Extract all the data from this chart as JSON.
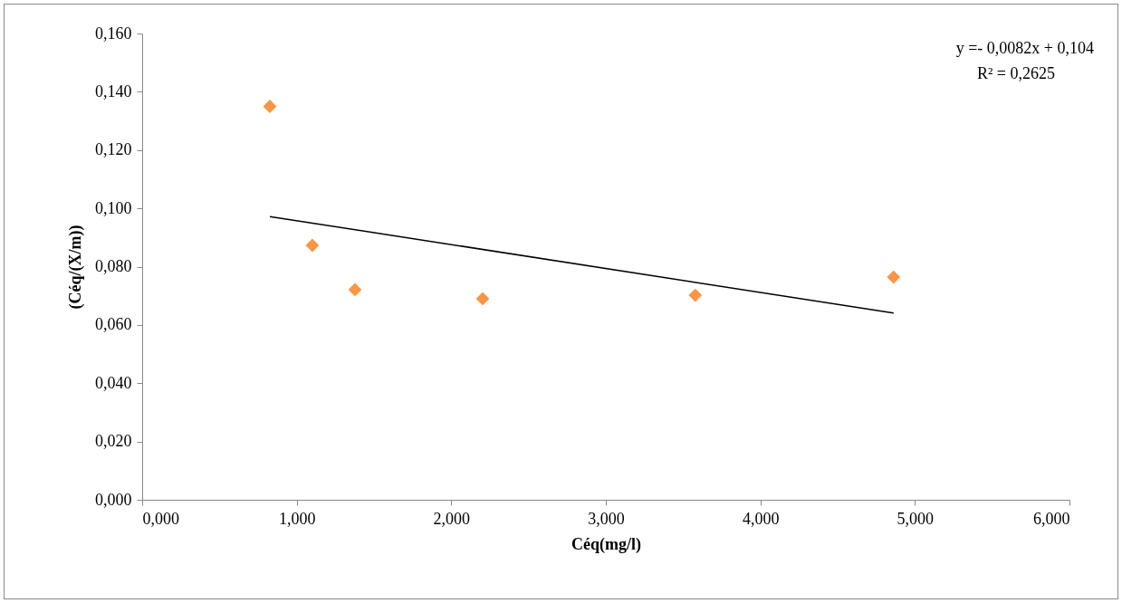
{
  "chart_data": {
    "type": "scatter",
    "xlabel": "Céq(mg/l)",
    "ylabel": "(Céq/(X/m))",
    "series": [
      {
        "marker": "diamond",
        "color": "#f79646",
        "x": [
          0.826,
          1.101,
          1.377,
          2.203,
          3.579,
          4.862
        ],
        "values": [
          0.135,
          0.0873,
          0.0721,
          0.069,
          0.0702,
          0.0764
        ]
      },
      {
        "type": "line",
        "color": "#000000",
        "x": [
          0.826,
          4.862
        ],
        "values": [
          0.0972,
          0.0641
        ]
      }
    ],
    "xlim": [
      0,
      6
    ],
    "xticks": [
      {
        "value": 0,
        "label": "0,000"
      },
      {
        "value": 1,
        "label": "1,000"
      },
      {
        "value": 2,
        "label": "2,000"
      },
      {
        "value": 3,
        "label": "3,000"
      },
      {
        "value": 4,
        "label": "4,000"
      },
      {
        "value": 5,
        "label": "5,000"
      },
      {
        "value": 6,
        "label": "6,000"
      }
    ],
    "ylim": [
      0,
      0.16
    ],
    "yticks": [
      {
        "value": 0,
        "label": "0,000"
      },
      {
        "value": 0.02,
        "label": "0,020"
      },
      {
        "value": 0.04,
        "label": "0,040"
      },
      {
        "value": 0.06,
        "label": "0,060"
      },
      {
        "value": 0.08,
        "label": "0,080"
      },
      {
        "value": 0.1,
        "label": "0,100"
      },
      {
        "value": 0.12,
        "label": "0,120"
      },
      {
        "value": 0.14,
        "label": "0,140"
      },
      {
        "value": 0.16,
        "label": "0,160"
      }
    ],
    "annotations": [
      "y =- 0,0082x + 0,104",
      "R² = 0,2625"
    ]
  }
}
